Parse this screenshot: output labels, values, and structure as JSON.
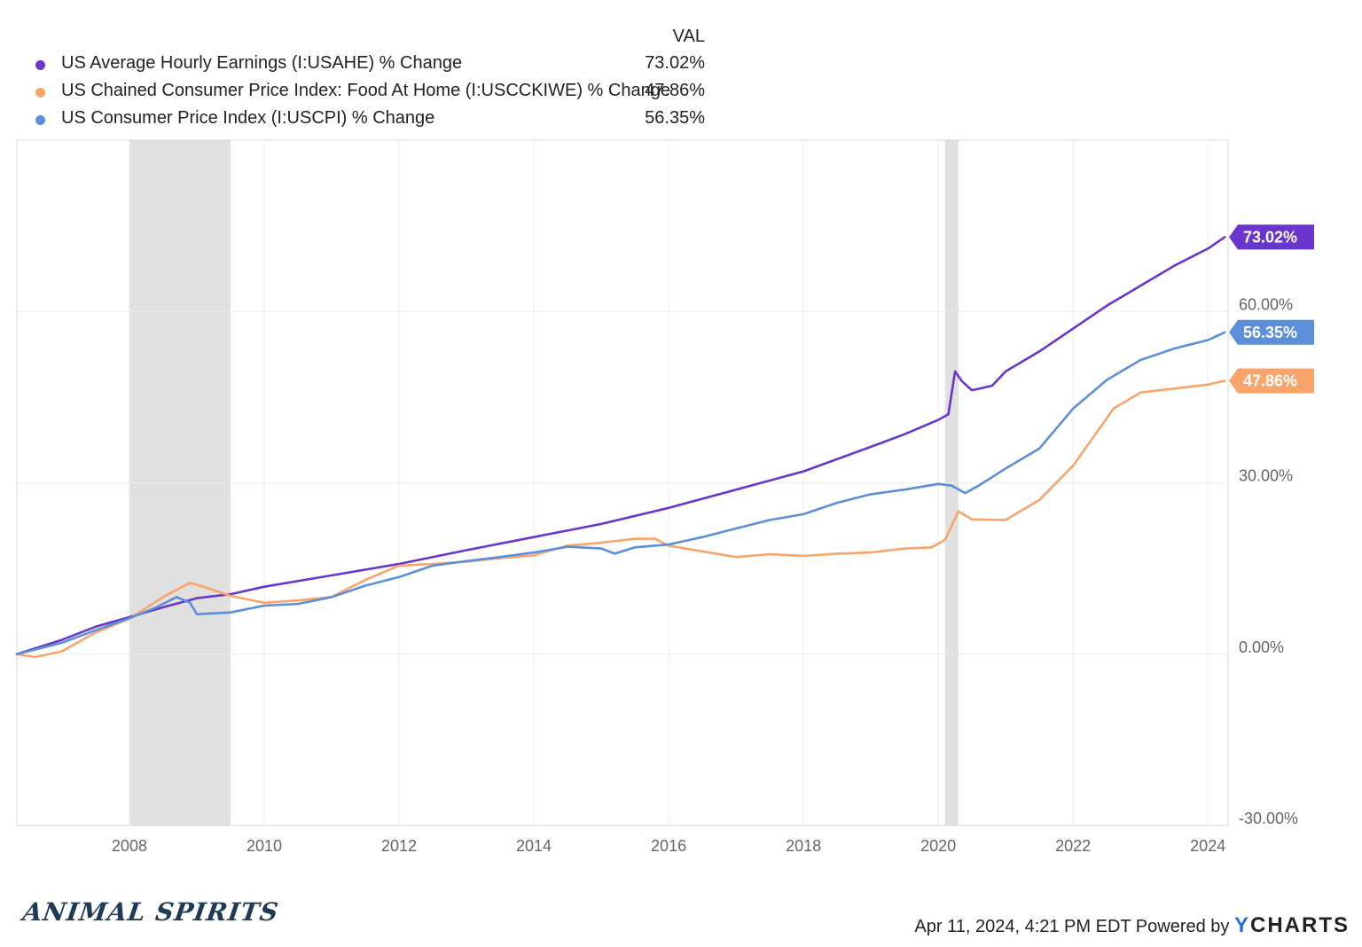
{
  "legend": {
    "header": "VAL",
    "items": [
      {
        "name": "US Average Hourly Earnings (I:USAHE) % Change",
        "value": "73.02%",
        "color": "#6a35cc"
      },
      {
        "name": "US Chained Consumer Price Index: Food At Home (I:USCCKIWE) % Change",
        "value": "47.86%",
        "color": "#f9a46b"
      },
      {
        "name": "US Consumer Price Index (I:USCPI) % Change",
        "value": "56.35%",
        "color": "#5b8fd9"
      }
    ]
  },
  "footer": {
    "brand": "ANIMAL SPIRITS",
    "timestamp": "Apr 11, 2024, 4:21 PM EDT Powered by",
    "logo_y": "Y",
    "logo_rest": "CHARTS"
  },
  "chart_data": {
    "type": "line",
    "xlim": [
      2006.33,
      2024.3
    ],
    "ylim": [
      -30,
      90
    ],
    "x_ticks": [
      2008,
      2010,
      2012,
      2014,
      2016,
      2018,
      2020,
      2022,
      2024
    ],
    "x_tick_labels": [
      "2008",
      "2010",
      "2012",
      "2014",
      "2016",
      "2018",
      "2020",
      "2022",
      "2024"
    ],
    "y_ticks": [
      60,
      30,
      0,
      -30
    ],
    "y_tick_labels": [
      "60.00%",
      "30.00%",
      "0.00%",
      "-30.00%"
    ],
    "grid": true,
    "recessions": [
      [
        2008.0,
        2009.5
      ],
      [
        2020.1,
        2020.3
      ]
    ],
    "series": [
      {
        "name": "US Average Hourly Earnings (I:USAHE) % Change",
        "color": "#6a35cc",
        "end_label": "73.02%",
        "x": [
          2006.33,
          2007.0,
          2007.5,
          2008.0,
          2008.5,
          2009.0,
          2009.5,
          2010.0,
          2011.0,
          2012.0,
          2013.0,
          2014.0,
          2015.0,
          2016.0,
          2017.0,
          2018.0,
          2019.0,
          2019.5,
          2020.0,
          2020.15,
          2020.25,
          2020.35,
          2020.5,
          2020.8,
          2021.0,
          2021.5,
          2022.0,
          2022.5,
          2023.0,
          2023.5,
          2024.0,
          2024.25
        ],
        "values": [
          0,
          2.5,
          4.8,
          6.5,
          8.2,
          9.8,
          10.5,
          11.8,
          13.8,
          15.8,
          18.2,
          20.5,
          22.8,
          25.6,
          28.8,
          32.0,
          36.3,
          38.5,
          41.0,
          42.0,
          49.5,
          47.8,
          46.2,
          47.0,
          49.5,
          53.0,
          57.0,
          61.0,
          64.5,
          68.0,
          71.0,
          73.02
        ]
      },
      {
        "name": "US Chained Consumer Price Index: Food At Home (I:USCCKIWE) % Change",
        "color": "#f9a46b",
        "end_label": "47.86%",
        "x": [
          2006.33,
          2006.6,
          2007.0,
          2007.5,
          2008.0,
          2008.5,
          2008.9,
          2009.1,
          2009.5,
          2010.0,
          2010.5,
          2011.0,
          2011.5,
          2012.0,
          2012.5,
          2013.0,
          2013.5,
          2014.0,
          2014.5,
          2015.0,
          2015.5,
          2015.8,
          2016.0,
          2016.5,
          2017.0,
          2017.5,
          2018.0,
          2018.5,
          2019.0,
          2019.5,
          2019.9,
          2020.1,
          2020.3,
          2020.5,
          2021.0,
          2021.5,
          2022.0,
          2022.3,
          2022.6,
          2023.0,
          2023.5,
          2024.0,
          2024.25
        ],
        "values": [
          0,
          -0.5,
          0.5,
          3.8,
          6.2,
          10.0,
          12.5,
          11.8,
          10.2,
          9.0,
          9.4,
          10.0,
          13.0,
          15.5,
          15.8,
          16.2,
          16.8,
          17.3,
          19.0,
          19.5,
          20.2,
          20.2,
          19.0,
          18.0,
          17.0,
          17.5,
          17.2,
          17.6,
          17.8,
          18.5,
          18.7,
          20.0,
          25.0,
          23.6,
          23.5,
          27.0,
          33.0,
          38.0,
          43.0,
          45.8,
          46.5,
          47.2,
          47.86
        ]
      },
      {
        "name": "US Consumer Price Index (I:USCPI) % Change",
        "color": "#5b8fd9",
        "end_label": "56.35%",
        "x": [
          2006.33,
          2007.0,
          2007.5,
          2008.0,
          2008.4,
          2008.7,
          2008.9,
          2009.0,
          2009.5,
          2010.0,
          2010.5,
          2011.0,
          2011.5,
          2012.0,
          2012.5,
          2013.0,
          2013.5,
          2014.0,
          2014.5,
          2015.0,
          2015.2,
          2015.5,
          2016.0,
          2016.5,
          2017.0,
          2017.5,
          2018.0,
          2018.5,
          2019.0,
          2019.5,
          2020.0,
          2020.2,
          2020.4,
          2020.6,
          2021.0,
          2021.5,
          2022.0,
          2022.5,
          2023.0,
          2023.5,
          2024.0,
          2024.25
        ],
        "values": [
          0,
          2.0,
          4.2,
          6.3,
          8.2,
          10.0,
          9.0,
          7.0,
          7.3,
          8.5,
          8.8,
          10.0,
          12.0,
          13.5,
          15.5,
          16.3,
          17.0,
          17.8,
          18.8,
          18.5,
          17.6,
          18.7,
          19.2,
          20.5,
          22.0,
          23.5,
          24.5,
          26.5,
          28.0,
          28.8,
          29.8,
          29.5,
          28.2,
          29.5,
          32.5,
          36.0,
          43.0,
          48.0,
          51.5,
          53.5,
          55.0,
          56.35
        ]
      }
    ]
  }
}
